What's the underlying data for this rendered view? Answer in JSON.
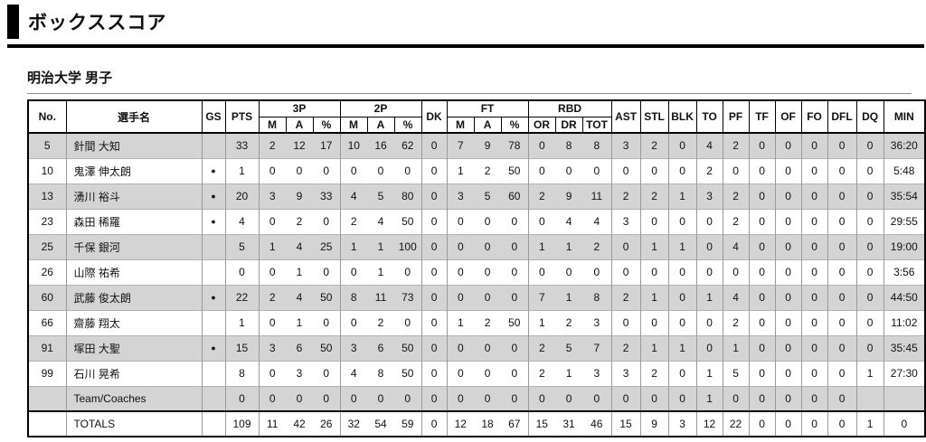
{
  "page": {
    "title": "ボックススコア",
    "team_heading": "明治大学 男子"
  },
  "colors": {
    "alt_row": "#d4d4d4",
    "border_dark": "#000000",
    "border_light": "#9a9a9a"
  },
  "table": {
    "headers": {
      "no": "No.",
      "player": "選手名",
      "gs": "GS",
      "pts": "PTS",
      "three_p": "3P",
      "two_p": "2P",
      "dk": "DK",
      "ft": "FT",
      "rbd": "RBD",
      "m": "M",
      "a": "A",
      "pct": "%",
      "or": "OR",
      "dr": "DR",
      "tot": "TOT",
      "ast": "AST",
      "stl": "STL",
      "blk": "BLK",
      "to": "TO",
      "pf": "PF",
      "tf": "TF",
      "of": "OF",
      "fo": "FO",
      "dfl": "DFL",
      "dq": "DQ",
      "min": "MIN"
    },
    "starter_mark": "●",
    "rows": [
      {
        "kind": "player",
        "no": "5",
        "name": "針間 大知",
        "gs": "",
        "cells": [
          "33",
          "2",
          "12",
          "17",
          "10",
          "16",
          "62",
          "0",
          "7",
          "9",
          "78",
          "0",
          "8",
          "8",
          "3",
          "2",
          "0",
          "4",
          "2",
          "0",
          "0",
          "0",
          "0",
          "0",
          "36:20"
        ]
      },
      {
        "kind": "player",
        "no": "10",
        "name": "鬼澤 伸太朗",
        "gs": "●",
        "cells": [
          "1",
          "0",
          "0",
          "0",
          "0",
          "0",
          "0",
          "0",
          "1",
          "2",
          "50",
          "0",
          "0",
          "0",
          "0",
          "0",
          "0",
          "2",
          "0",
          "0",
          "0",
          "0",
          "0",
          "0",
          "5:48"
        ]
      },
      {
        "kind": "player",
        "no": "13",
        "name": "湧川 裕斗",
        "gs": "●",
        "cells": [
          "20",
          "3",
          "9",
          "33",
          "4",
          "5",
          "80",
          "0",
          "3",
          "5",
          "60",
          "2",
          "9",
          "11",
          "2",
          "2",
          "1",
          "3",
          "2",
          "0",
          "0",
          "0",
          "0",
          "0",
          "35:54"
        ]
      },
      {
        "kind": "player",
        "no": "23",
        "name": "森田 稀羅",
        "gs": "●",
        "cells": [
          "4",
          "0",
          "2",
          "0",
          "2",
          "4",
          "50",
          "0",
          "0",
          "0",
          "0",
          "0",
          "4",
          "4",
          "3",
          "0",
          "0",
          "0",
          "2",
          "0",
          "0",
          "0",
          "0",
          "0",
          "29:55"
        ]
      },
      {
        "kind": "player",
        "no": "25",
        "name": "千保 銀河",
        "gs": "",
        "cells": [
          "5",
          "1",
          "4",
          "25",
          "1",
          "1",
          "100",
          "0",
          "0",
          "0",
          "0",
          "1",
          "1",
          "2",
          "0",
          "1",
          "1",
          "0",
          "4",
          "0",
          "0",
          "0",
          "0",
          "0",
          "19:00"
        ]
      },
      {
        "kind": "player",
        "no": "26",
        "name": "山際 祐希",
        "gs": "",
        "cells": [
          "0",
          "0",
          "1",
          "0",
          "0",
          "1",
          "0",
          "0",
          "0",
          "0",
          "0",
          "0",
          "0",
          "0",
          "0",
          "0",
          "0",
          "0",
          "0",
          "0",
          "0",
          "0",
          "0",
          "0",
          "3:56"
        ]
      },
      {
        "kind": "player",
        "no": "60",
        "name": "武藤 俊太朗",
        "gs": "●",
        "cells": [
          "22",
          "2",
          "4",
          "50",
          "8",
          "11",
          "73",
          "0",
          "0",
          "0",
          "0",
          "7",
          "1",
          "8",
          "2",
          "1",
          "0",
          "1",
          "4",
          "0",
          "0",
          "0",
          "0",
          "0",
          "44:50"
        ]
      },
      {
        "kind": "player",
        "no": "66",
        "name": "齋藤 翔太",
        "gs": "",
        "cells": [
          "1",
          "0",
          "1",
          "0",
          "0",
          "2",
          "0",
          "0",
          "1",
          "2",
          "50",
          "1",
          "2",
          "3",
          "0",
          "0",
          "0",
          "0",
          "2",
          "0",
          "0",
          "0",
          "0",
          "0",
          "11:02"
        ]
      },
      {
        "kind": "player",
        "no": "91",
        "name": "塚田 大聖",
        "gs": "●",
        "cells": [
          "15",
          "3",
          "6",
          "50",
          "3",
          "6",
          "50",
          "0",
          "0",
          "0",
          "0",
          "2",
          "5",
          "7",
          "2",
          "1",
          "1",
          "0",
          "1",
          "0",
          "0",
          "0",
          "0",
          "0",
          "35:45"
        ]
      },
      {
        "kind": "player",
        "no": "99",
        "name": "石川 晃希",
        "gs": "",
        "cells": [
          "8",
          "0",
          "3",
          "0",
          "4",
          "8",
          "50",
          "0",
          "0",
          "0",
          "0",
          "2",
          "1",
          "3",
          "3",
          "2",
          "0",
          "1",
          "5",
          "0",
          "0",
          "0",
          "0",
          "1",
          "27:30"
        ]
      },
      {
        "kind": "team",
        "no": "",
        "name": "Team/Coaches",
        "gs": "",
        "cells": [
          "0",
          "0",
          "0",
          "0",
          "0",
          "0",
          "0",
          "0",
          "0",
          "0",
          "0",
          "0",
          "0",
          "0",
          "0",
          "0",
          "0",
          "1",
          "0",
          "0",
          "0",
          "0",
          "0",
          "",
          ""
        ]
      },
      {
        "kind": "totals",
        "no": "",
        "name": "TOTALS",
        "gs": "",
        "cells": [
          "109",
          "11",
          "42",
          "26",
          "32",
          "54",
          "59",
          "0",
          "12",
          "18",
          "67",
          "15",
          "31",
          "46",
          "15",
          "9",
          "3",
          "12",
          "22",
          "0",
          "0",
          "0",
          "0",
          "1",
          "0"
        ]
      }
    ]
  }
}
